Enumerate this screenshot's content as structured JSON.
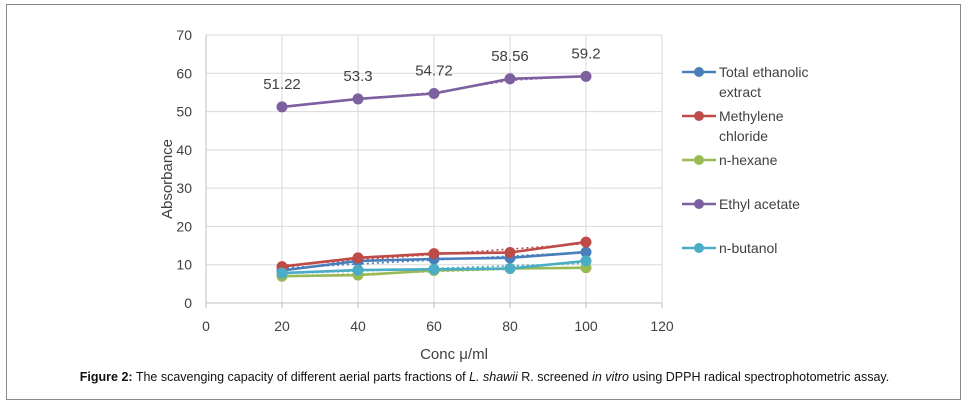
{
  "chart_data": {
    "type": "line",
    "xlabel": "Conc μ/ml",
    "ylabel": "Absorbance",
    "xlim": [
      0,
      120
    ],
    "ylim": [
      0,
      70
    ],
    "xticks": [
      0,
      20,
      40,
      60,
      80,
      100,
      120
    ],
    "yticks": [
      0,
      10,
      20,
      30,
      40,
      50,
      60,
      70
    ],
    "grid": true,
    "legend_position": "right",
    "trendlines": "dotted",
    "x": [
      20,
      40,
      60,
      80,
      100
    ],
    "series": [
      {
        "name": "Total ethanolic extract",
        "label_lines": [
          "Total ethanolic",
          "extract"
        ],
        "color": "#4a7ebb",
        "values": [
          8.5,
          11.0,
          11.5,
          11.8,
          13.3
        ]
      },
      {
        "name": "Methylene chloride",
        "label_lines": [
          "Methylene",
          "chloride"
        ],
        "color": "#be4b48",
        "values": [
          9.5,
          11.8,
          12.9,
          13.2,
          15.9
        ]
      },
      {
        "name": "n-hexane",
        "label_lines": [
          "n-hexane"
        ],
        "color": "#98b954",
        "values": [
          7.0,
          7.3,
          8.5,
          9.0,
          9.2
        ]
      },
      {
        "name": "Ethyl acetate",
        "label_lines": [
          "Ethyl acetate"
        ],
        "color": "#7d60a0",
        "values": [
          51.22,
          53.3,
          54.72,
          58.56,
          59.2
        ],
        "data_labels": [
          "51.22",
          "53.3",
          "54.72",
          "58.56",
          "59.2"
        ]
      },
      {
        "name": "n-butanol",
        "label_lines": [
          "n-butanol"
        ],
        "color": "#4bacc6",
        "values": [
          7.8,
          8.6,
          8.8,
          9.0,
          11.0
        ]
      }
    ]
  },
  "caption": {
    "label": "Figure 2:",
    "text_before": " The scavenging capacity of different aerial parts fractions of ",
    "species": "L. shawii",
    "text_middle": " R. screened ",
    "in_vitro": "in vitro",
    "text_after": " using DPPH radical spectrophotometric assay."
  }
}
